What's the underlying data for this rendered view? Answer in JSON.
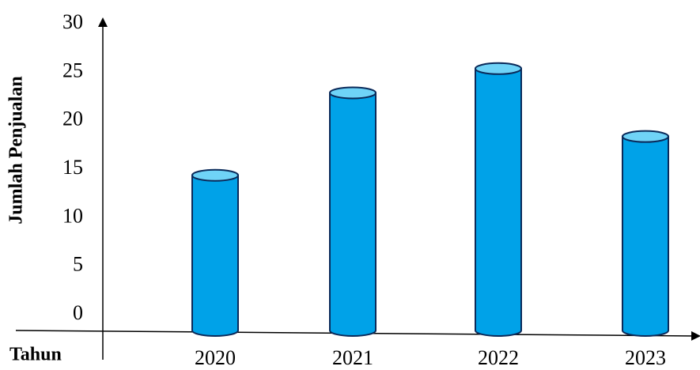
{
  "chart_data": {
    "type": "bar",
    "x_label": "Tahun",
    "y_label": "Jumlah Penjualan",
    "categories": [
      "2020",
      "2021",
      "2022",
      "2023"
    ],
    "values": [
      16,
      24.5,
      27,
      20
    ],
    "color": "#00a2e8",
    "top_color": "#6fd3f7",
    "ylim": [
      0,
      30
    ],
    "yticks": [
      0,
      5,
      10,
      15,
      20,
      25,
      30
    ]
  }
}
